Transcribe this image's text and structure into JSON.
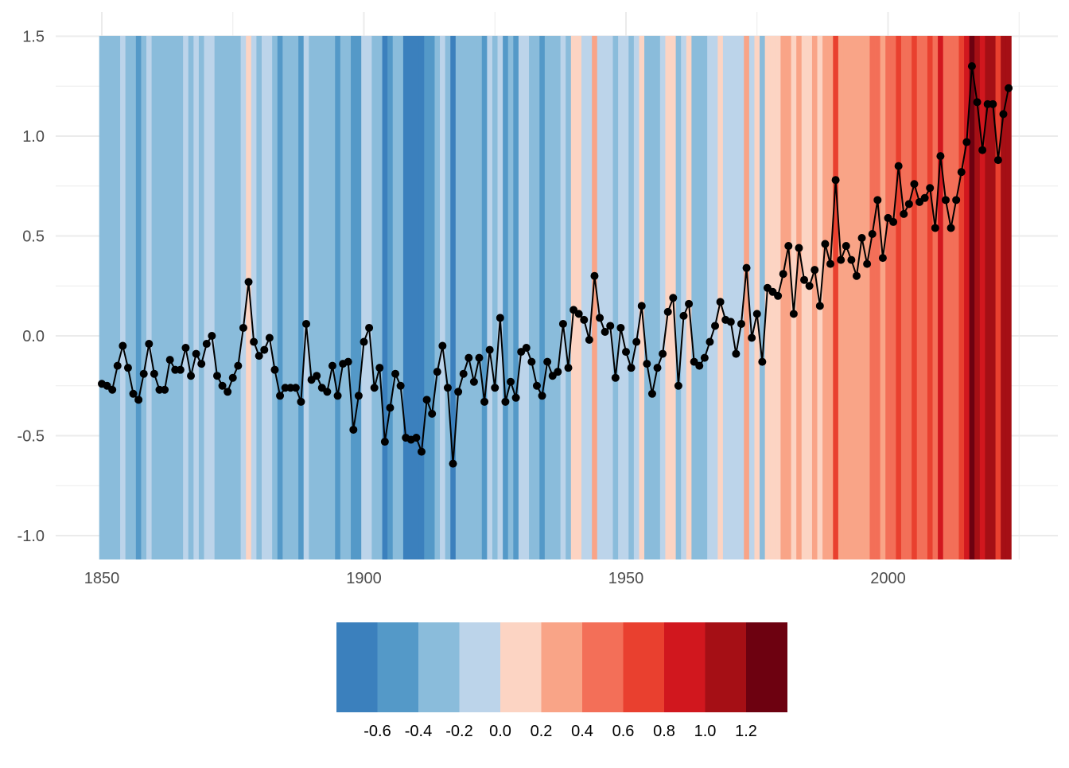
{
  "chart_data": {
    "type": "line",
    "title": "",
    "xlabel": "",
    "ylabel": "",
    "xlim": [
      1850,
      2023
    ],
    "ylim": [
      -1.0,
      1.5
    ],
    "x_ticks": [
      "1850",
      "1900",
      "1950",
      "2000"
    ],
    "y_ticks": [
      "1.5",
      "1.0",
      "0.5",
      "0.0",
      "-0.5",
      "-1.0"
    ],
    "grid": true,
    "background_stripes": "one vertical stripe per year, filled with the colour bin of that year's value",
    "x": [
      1850,
      1851,
      1852,
      1853,
      1854,
      1855,
      1856,
      1857,
      1858,
      1859,
      1860,
      1861,
      1862,
      1863,
      1864,
      1865,
      1866,
      1867,
      1868,
      1869,
      1870,
      1871,
      1872,
      1873,
      1874,
      1875,
      1876,
      1877,
      1878,
      1879,
      1880,
      1881,
      1882,
      1883,
      1884,
      1885,
      1886,
      1887,
      1888,
      1889,
      1890,
      1891,
      1892,
      1893,
      1894,
      1895,
      1896,
      1897,
      1898,
      1899,
      1900,
      1901,
      1902,
      1903,
      1904,
      1905,
      1906,
      1907,
      1908,
      1909,
      1910,
      1911,
      1912,
      1913,
      1914,
      1915,
      1916,
      1917,
      1918,
      1919,
      1920,
      1921,
      1922,
      1923,
      1924,
      1925,
      1926,
      1927,
      1928,
      1929,
      1930,
      1931,
      1932,
      1933,
      1934,
      1935,
      1936,
      1937,
      1938,
      1939,
      1940,
      1941,
      1942,
      1943,
      1944,
      1945,
      1946,
      1947,
      1948,
      1949,
      1950,
      1951,
      1952,
      1953,
      1954,
      1955,
      1956,
      1957,
      1958,
      1959,
      1960,
      1961,
      1962,
      1963,
      1964,
      1965,
      1966,
      1967,
      1968,
      1969,
      1970,
      1971,
      1972,
      1973,
      1974,
      1975,
      1976,
      1977,
      1978,
      1979,
      1980,
      1981,
      1982,
      1983,
      1984,
      1985,
      1986,
      1987,
      1988,
      1989,
      1990,
      1991,
      1992,
      1993,
      1994,
      1995,
      1996,
      1997,
      1998,
      1999,
      2000,
      2001,
      2002,
      2003,
      2004,
      2005,
      2006,
      2007,
      2008,
      2009,
      2010,
      2011,
      2012,
      2013,
      2014,
      2015,
      2016,
      2017,
      2018,
      2019,
      2020,
      2021,
      2022,
      2023
    ],
    "series": [
      {
        "values": [
          -0.24,
          -0.25,
          -0.27,
          -0.15,
          -0.05,
          -0.16,
          -0.29,
          -0.32,
          -0.19,
          -0.04,
          -0.19,
          -0.27,
          -0.27,
          -0.12,
          -0.17,
          -0.17,
          -0.06,
          -0.2,
          -0.09,
          -0.14,
          -0.04,
          0.0,
          -0.2,
          -0.25,
          -0.28,
          -0.21,
          -0.15,
          0.04,
          0.27,
          -0.03,
          -0.1,
          -0.07,
          -0.01,
          -0.17,
          -0.3,
          -0.26,
          -0.26,
          -0.26,
          -0.33,
          0.06,
          -0.22,
          -0.2,
          -0.26,
          -0.28,
          -0.15,
          -0.3,
          -0.14,
          -0.13,
          -0.47,
          -0.3,
          -0.03,
          0.04,
          -0.26,
          -0.16,
          -0.53,
          -0.36,
          -0.19,
          -0.25,
          -0.51,
          -0.52,
          -0.51,
          -0.58,
          -0.32,
          -0.39,
          -0.18,
          -0.05,
          -0.26,
          -0.64,
          -0.28,
          -0.19,
          -0.11,
          -0.23,
          -0.11,
          -0.33,
          -0.07,
          -0.26,
          0.09,
          -0.33,
          -0.23,
          -0.31,
          -0.08,
          -0.06,
          -0.13,
          -0.25,
          -0.3,
          -0.13,
          -0.2,
          -0.18,
          0.06,
          -0.16,
          0.13,
          0.11,
          0.08,
          -0.02,
          0.3,
          0.09,
          0.02,
          0.05,
          -0.21,
          0.04,
          -0.08,
          -0.16,
          -0.03,
          0.15,
          -0.14,
          -0.29,
          -0.16,
          -0.09,
          0.12,
          0.19,
          -0.25,
          0.1,
          0.16,
          -0.13,
          -0.15,
          -0.11,
          -0.03,
          0.05,
          0.17,
          0.08,
          0.07,
          -0.09,
          0.06,
          0.34,
          -0.01,
          0.11,
          -0.13,
          0.24,
          0.22,
          0.2,
          0.31,
          0.45,
          0.11,
          0.44,
          0.28,
          0.25,
          0.33,
          0.15,
          0.46,
          0.36,
          0.78,
          0.38,
          0.45,
          0.38,
          0.3,
          0.49,
          0.36,
          0.51,
          0.68,
          0.39,
          0.59,
          0.57,
          0.85,
          0.61,
          0.66,
          0.76,
          0.67,
          0.69,
          0.74,
          0.54,
          0.9,
          0.68,
          0.54,
          0.68,
          0.82,
          0.97,
          1.35,
          1.17,
          0.93,
          1.16,
          1.16,
          0.88,
          1.11,
          1.24
        ]
      }
    ],
    "color_scale": {
      "breaks": [
        "-0.6",
        "-0.4",
        "-0.2",
        "0.0",
        "0.2",
        "0.4",
        "0.6",
        "0.8",
        "1.0",
        "1.2"
      ],
      "bin_min": -0.7,
      "bin_step": 0.2,
      "colors": [
        "#3b80bd",
        "#5499c8",
        "#8abcdb",
        "#bcd4ea",
        "#fcd4c3",
        "#f9a487",
        "#f36f58",
        "#e9402f",
        "#d1171e",
        "#a50f15",
        "#6d0110"
      ],
      "line_color": "#000000",
      "grid_color": "#ebebeb",
      "text_color": "#4d4d4d"
    }
  }
}
